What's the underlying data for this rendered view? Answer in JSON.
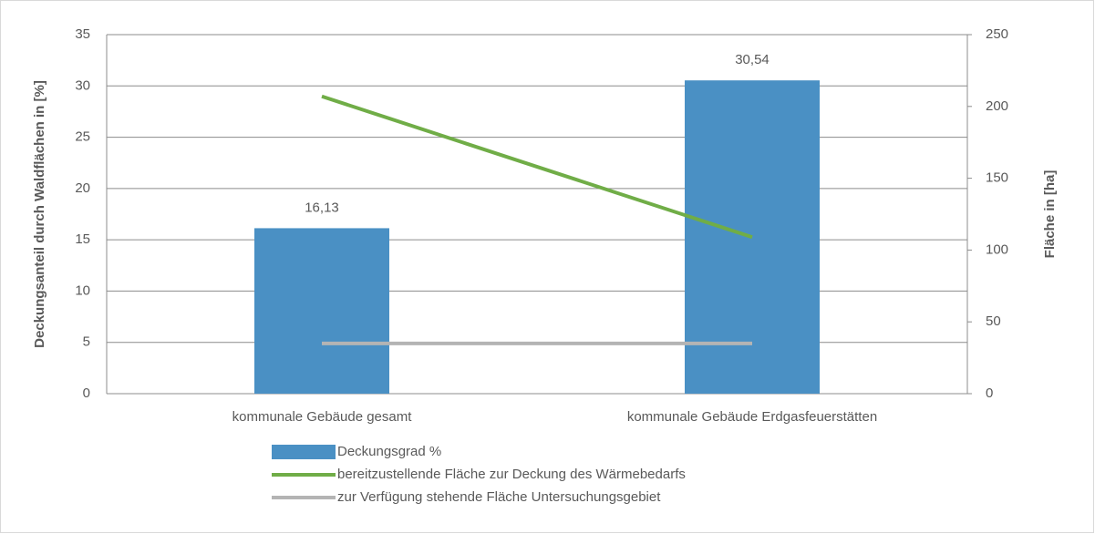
{
  "chart_data": {
    "type": "bar",
    "categories": [
      "kommunale Gebäude gesamt",
      "kommunale Gebäude Erdgasfeuerstätten"
    ],
    "series": [
      {
        "name": "Deckungsgrad %",
        "type": "bar",
        "color": "#4a90c4",
        "values": [
          16.13,
          30.54
        ],
        "value_labels": [
          "16,13",
          "30,54"
        ]
      },
      {
        "name": "bereitzustellende Fläche zur Deckung des Wärmebedarfs",
        "type": "line",
        "axis": "y2",
        "color": "#70ad47",
        "values": [
          207,
          109
        ]
      },
      {
        "name": "zur Verfügung stehende Fläche Untersuchungsgebiet",
        "type": "line",
        "axis": "y2",
        "color": "#b4b4b4",
        "values": [
          35,
          35
        ]
      }
    ],
    "ylabel": "Deckungsanteil durch Waldflächen in [%]",
    "y2label": "Fläche in [ha]",
    "ylim": [
      0,
      35
    ],
    "yticks": [
      0,
      5,
      10,
      15,
      20,
      25,
      30,
      35
    ],
    "y2lim": [
      0,
      250
    ],
    "y2ticks": [
      0,
      50,
      100,
      150,
      200,
      250
    ],
    "grid": true,
    "legend": "bottom"
  }
}
